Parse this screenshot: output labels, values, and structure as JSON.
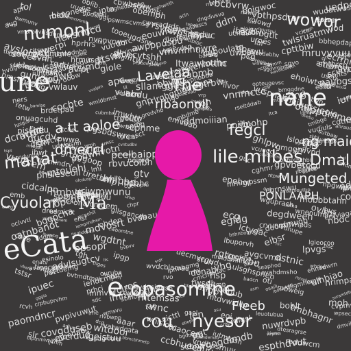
{
  "colors": {
    "background": "#3b3939",
    "text": "#f4f4f4",
    "figure": "#e619a8"
  },
  "words": {
    "nane": "nane",
    "une": "une",
    "cyuolar": "Cyuolar",
    "ma": "Ma",
    "ecata": "eCata",
    "manat": "manat",
    "mungeted": "Mungeted",
    "ponlaaph": "PONLAAPH",
    "lile_mlibes": "lile mlibes",
    "dmal": "Dmal",
    "nnmaid": "ng maid",
    "opasomine": "opasomine",
    "nyesor": "nyesor",
    "e": "e",
    "the": "The",
    "lavelaa": "Lavelaa",
    "rlbaonoll": "rlbaonoll",
    "numonl": "numonl",
    "wowor": "wowor",
    "fegcl": "fegcl",
    "aiooe": "a tt aoloe",
    "dmeccl": "dmeccl",
    "cou": "cou",
    "fleeb": "Fleeb"
  },
  "icons": {
    "figure": "person-silhouette-icon"
  }
}
